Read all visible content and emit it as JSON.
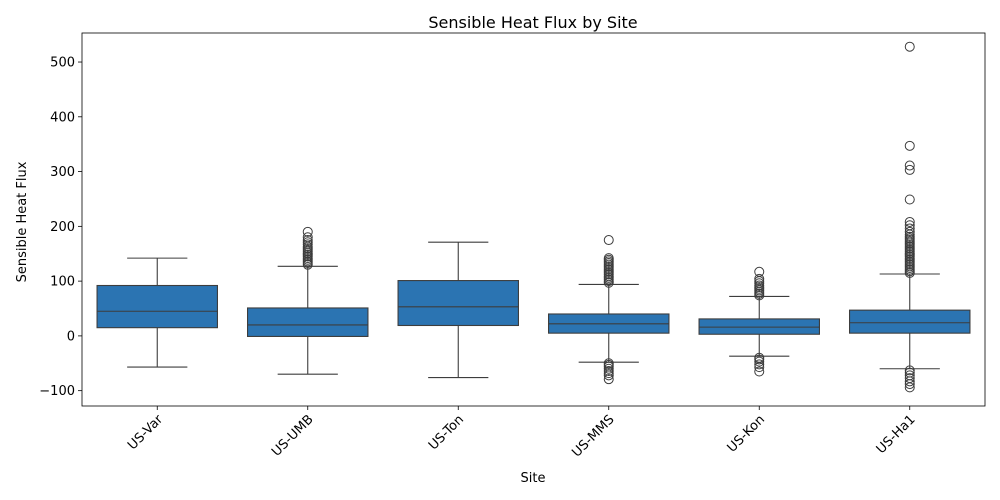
{
  "chart_data": {
    "type": "box",
    "title": "Sensible Heat Flux by Site",
    "xlabel": "Site",
    "ylabel": "Sensible Heat Flux",
    "ylim": [
      -128,
      553
    ],
    "yticks": [
      -100,
      0,
      100,
      200,
      300,
      400,
      500
    ],
    "ytick_labels": [
      "−100",
      "0",
      "100",
      "200",
      "300",
      "400",
      "500"
    ],
    "box_color": "#2b74b2",
    "line_color": "#3d3d3d",
    "categories": [
      "US-Var",
      "US-UMB",
      "US-Ton",
      "US-MMS",
      "US-Kon",
      "US-Ha1"
    ],
    "boxes": [
      {
        "q1": 15,
        "median": 45,
        "q3": 92,
        "whisker_low": -57,
        "whisker_high": 142,
        "outliers": []
      },
      {
        "q1": -1,
        "median": 20,
        "q3": 51,
        "whisker_low": -70,
        "whisker_high": 127,
        "outliers": [
          130,
          133,
          136,
          139,
          142,
          145,
          148,
          151,
          154,
          157,
          160,
          163,
          167,
          171,
          175,
          180,
          190
        ]
      },
      {
        "q1": 19,
        "median": 53,
        "q3": 101,
        "whisker_low": -76,
        "whisker_high": 171,
        "outliers": []
      },
      {
        "q1": 5,
        "median": 22,
        "q3": 40,
        "whisker_low": -48,
        "whisker_high": 94,
        "outliers": [
          -50,
          -53,
          -56,
          -60,
          -64,
          -68,
          -72,
          -79,
          97,
          100,
          103,
          106,
          109,
          112,
          115,
          118,
          121,
          124,
          127,
          130,
          133,
          136,
          139,
          142,
          175
        ]
      },
      {
        "q1": 3,
        "median": 16,
        "q3": 31,
        "whisker_low": -37,
        "whisker_high": 72,
        "outliers": [
          -40,
          -43,
          -47,
          -52,
          -57,
          -65,
          74,
          77,
          80,
          83,
          86,
          89,
          92,
          96,
          100,
          104,
          117
        ]
      },
      {
        "q1": 5,
        "median": 24,
        "q3": 47,
        "whisker_low": -60,
        "whisker_high": 113,
        "outliers": [
          -63,
          -67,
          -72,
          -77,
          -83,
          -88,
          -94,
          115,
          118,
          121,
          124,
          127,
          130,
          133,
          136,
          139,
          142,
          145,
          148,
          151,
          154,
          157,
          160,
          163,
          166,
          169,
          172,
          175,
          178,
          181,
          185,
          190,
          196,
          202,
          208,
          249,
          303,
          311,
          347,
          528
        ]
      }
    ]
  }
}
